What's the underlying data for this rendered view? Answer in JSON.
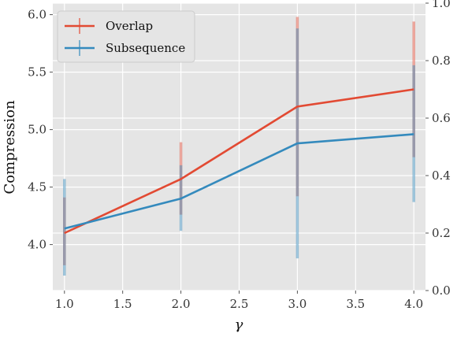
{
  "chart_data": {
    "type": "line",
    "title": "",
    "xlabel": "γ",
    "ylabel": "Compression",
    "x": [
      1.0,
      2.0,
      3.0,
      4.0
    ],
    "xlim": [
      0.9,
      4.1
    ],
    "ylim": [
      3.6,
      6.1
    ],
    "y2lim": [
      0.0,
      1.0
    ],
    "x_ticks": [
      "1.0",
      "1.5",
      "2.0",
      "2.5",
      "3.0",
      "3.5",
      "4.0"
    ],
    "x_tick_values": [
      1.0,
      1.5,
      2.0,
      2.5,
      3.0,
      3.5,
      4.0
    ],
    "y_ticks": [
      "4.0",
      "4.5",
      "5.0",
      "5.5",
      "6.0"
    ],
    "y_tick_values": [
      4.0,
      4.5,
      5.0,
      5.5,
      6.0
    ],
    "y2_ticks": [
      "0.0",
      "0.2",
      "0.4",
      "0.6",
      "0.8",
      "1.0"
    ],
    "y2_tick_values": [
      0.0,
      0.2,
      0.4,
      0.6,
      0.8,
      1.0
    ],
    "grid": true,
    "legend_position": "top-left",
    "series": [
      {
        "name": "Overlap",
        "color": "#e24a33",
        "values": [
          4.1,
          4.57,
          5.2,
          5.35
        ],
        "error_low": [
          3.82,
          4.26,
          4.42,
          4.76
        ],
        "error_high": [
          4.41,
          4.89,
          5.98,
          5.94
        ]
      },
      {
        "name": "Subsequence",
        "color": "#348abd",
        "values": [
          4.14,
          4.4,
          4.88,
          4.96
        ],
        "error_low": [
          3.73,
          4.12,
          3.88,
          4.37
        ],
        "error_high": [
          4.57,
          4.69,
          5.88,
          5.56
        ]
      }
    ]
  }
}
